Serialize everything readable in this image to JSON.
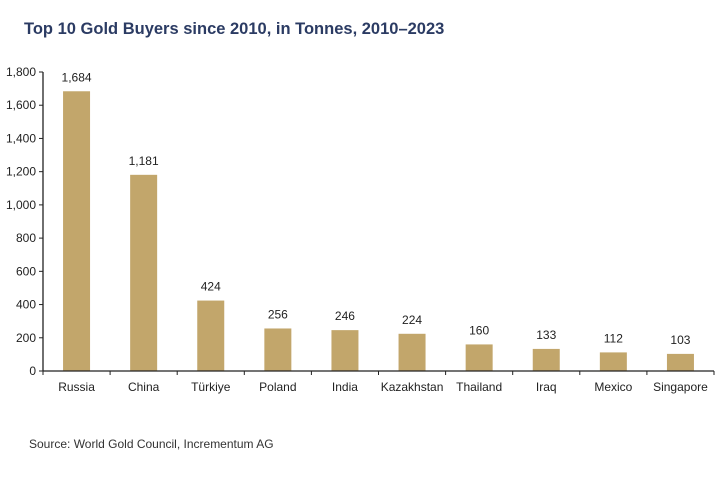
{
  "title": "Top 10 Gold Buyers since 2010, in Tonnes, 2010–2023",
  "source": "Source: World Gold Council, Incrementum AG",
  "chart_data": {
    "type": "bar",
    "title": "Top 10 Gold Buyers since 2010, in Tonnes, 2010–2023",
    "xlabel": "",
    "ylabel": "",
    "categories": [
      "Russia",
      "China",
      "Türkiye",
      "Poland",
      "India",
      "Kazakhstan",
      "Thailand",
      "Iraq",
      "Mexico",
      "Singapore"
    ],
    "values": [
      1684,
      1181,
      424,
      256,
      246,
      224,
      160,
      133,
      112,
      103
    ],
    "data_labels": [
      "1,684",
      "1,181",
      "424",
      "256",
      "246",
      "224",
      "160",
      "133",
      "112",
      "103"
    ],
    "ylim": [
      0,
      1800
    ],
    "yticks": [
      0,
      200,
      400,
      600,
      800,
      1000,
      1200,
      1400,
      1600,
      1800
    ],
    "ytick_labels": [
      "0",
      "200",
      "400",
      "600",
      "800",
      "1,000",
      "1,200",
      "1,400",
      "1,600",
      "1,800"
    ],
    "grid": false,
    "legend": "none",
    "bar_color": "#c2a66b",
    "axis_color": "#222222",
    "title_color": "#2b3b63"
  }
}
